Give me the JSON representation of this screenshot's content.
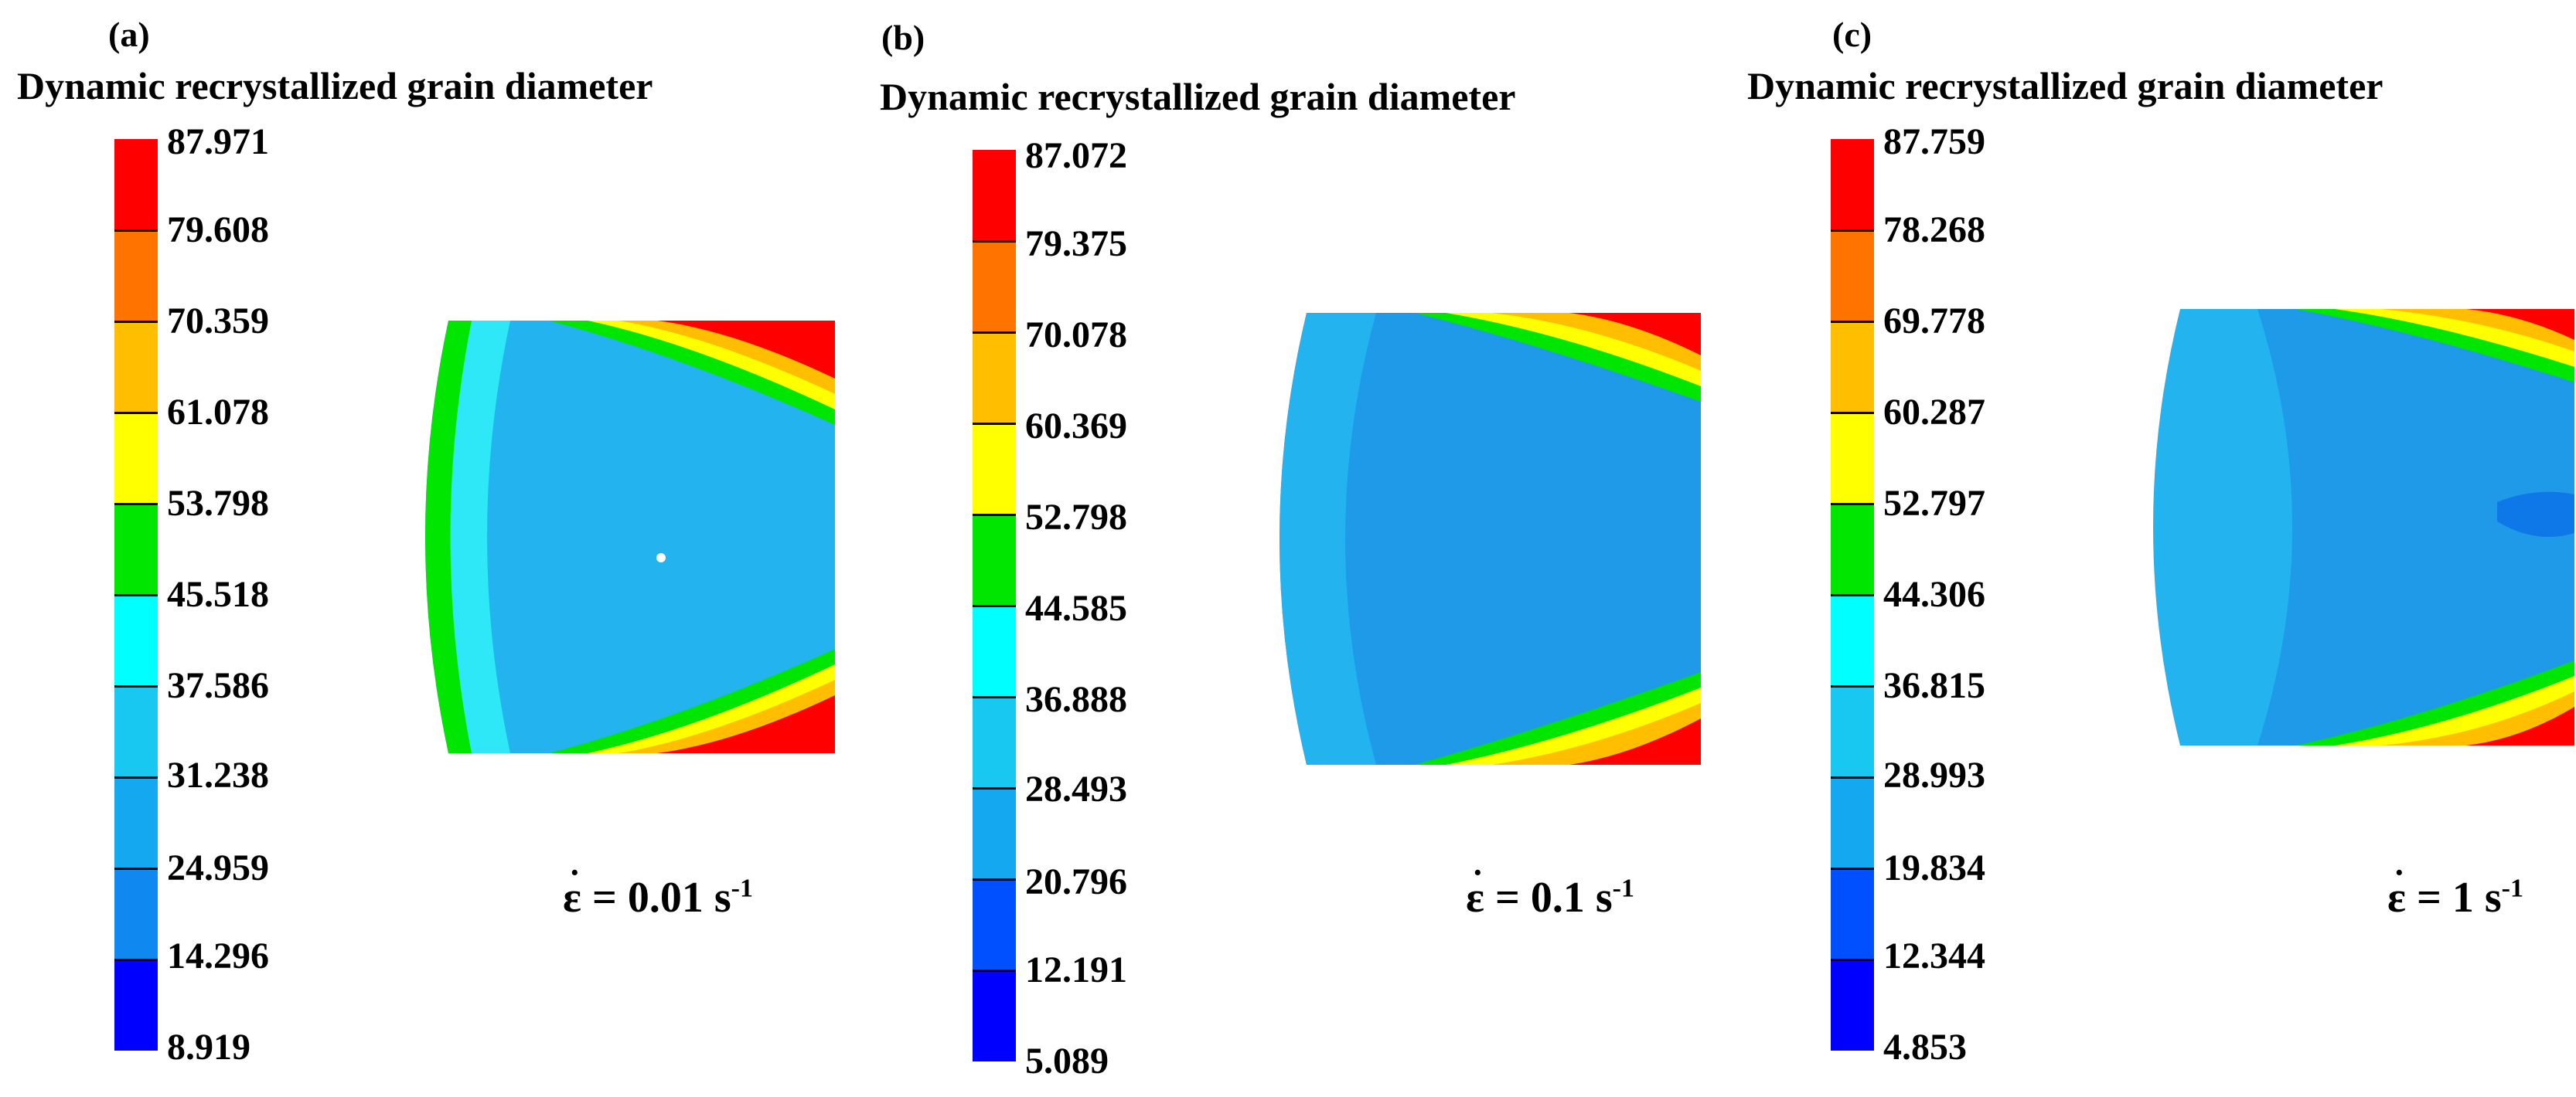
{
  "panels": [
    {
      "label": "(a)",
      "title": "Dynamic recrystallized grain diameter",
      "ticks": [
        "87.971",
        "79.608",
        "70.359",
        "61.078",
        "53.798",
        "45.518",
        "37.586",
        "31.238",
        "24.959",
        "14.296",
        "8.919"
      ],
      "rate_symbol": "ε",
      "rate_value": " = 0.01 s",
      "rate_exp": "-1"
    },
    {
      "label": "(b)",
      "title": "Dynamic recrystallized grain diameter",
      "ticks": [
        "87.072",
        "79.375",
        "70.078",
        "60.369",
        "52.798",
        "44.585",
        "36.888",
        "28.493",
        "20.796",
        "12.191",
        "5.089"
      ],
      "rate_symbol": "ε",
      "rate_value": " = 0.1 s",
      "rate_exp": "-1"
    },
    {
      "label": "(c)",
      "title": "Dynamic recrystallized grain diameter",
      "ticks": [
        "87.759",
        "78.268",
        "69.778",
        "60.287",
        "52.797",
        "44.306",
        "36.815",
        "28.993",
        "19.834",
        "12.344",
        "4.853"
      ],
      "rate_symbol": "ε",
      "rate_value": " = 1 s",
      "rate_exp": "-1"
    }
  ],
  "colors": {
    "scale": [
      "#ff0000",
      "#ff7300",
      "#ffbf00",
      "#ffff00",
      "#00e600",
      "#00ffff",
      "#19c8f0",
      "#14a8f0",
      "#0f88f0",
      "#0050ff",
      "#0000ff"
    ],
    "core": "#23b4f0",
    "core_dark": "#1e9ae8",
    "edge": "#2ee8f8"
  }
}
